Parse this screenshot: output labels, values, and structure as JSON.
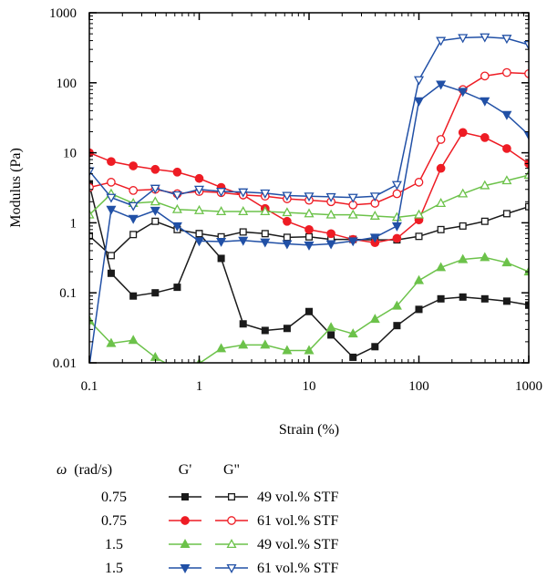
{
  "chart_data": {
    "type": "line",
    "x_scale": "log",
    "y_scale": "log",
    "xlim": [
      0.1,
      1000
    ],
    "ylim": [
      0.01,
      1000
    ],
    "xlabel": "Strain (%)",
    "ylabel": "Modulus (Pa)",
    "x_ticks": [
      {
        "value": 0.1,
        "label": "0.1"
      },
      {
        "value": 1,
        "label": "1"
      },
      {
        "value": 10,
        "label": "10"
      },
      {
        "value": 100,
        "label": "100"
      },
      {
        "value": 1000,
        "label": "1000"
      }
    ],
    "y_ticks": [
      {
        "value": 0.01,
        "label": "0.01"
      },
      {
        "value": 0.1,
        "label": "0.1"
      },
      {
        "value": 1,
        "label": "1"
      },
      {
        "value": 10,
        "label": "10"
      },
      {
        "value": 100,
        "label": "100"
      },
      {
        "value": 1000,
        "label": "1000"
      }
    ],
    "grid": false,
    "legend": {
      "position": "bottom",
      "header": {
        "omega_symbol": "ω",
        "omega_unit": "(rad/s)",
        "g_prime": "G'",
        "g_double_prime": "G\""
      },
      "rows": [
        {
          "omega": "0.75",
          "label": "49 vol.% STF",
          "color": "#1a1a1a"
        },
        {
          "omega": "0.75",
          "label": "61 vol.% STF",
          "color": "#ee1c24"
        },
        {
          "omega": "1.5",
          "label": "49 vol.% STF",
          "color": "#6cc24a"
        },
        {
          "omega": "1.5",
          "label": "61 vol.% STF",
          "color": "#2150a6"
        }
      ]
    },
    "series": [
      {
        "name": "G' 49 vol.% STF, ω 0.75",
        "color": "#1a1a1a",
        "marker": "square",
        "filled": true,
        "x": [
          0.1,
          0.158,
          0.251,
          0.398,
          0.631,
          1.0,
          1.585,
          2.512,
          3.981,
          6.31,
          10.0,
          15.85,
          25.12,
          39.81,
          63.1,
          100,
          158.5,
          251.2,
          398.1,
          631,
          1000
        ],
        "y": [
          3.5,
          0.19,
          0.09,
          0.1,
          0.12,
          0.7,
          0.31,
          0.036,
          0.029,
          0.031,
          0.054,
          0.025,
          0.012,
          0.017,
          0.034,
          0.058,
          0.082,
          0.087,
          0.082,
          0.076,
          0.067
        ]
      },
      {
        "name": "G\" 49 vol.% STF, ω 0.75",
        "color": "#1a1a1a",
        "marker": "square",
        "filled": false,
        "x": [
          0.1,
          0.158,
          0.251,
          0.398,
          0.631,
          1.0,
          1.585,
          2.512,
          3.981,
          6.31,
          10.0,
          15.85,
          25.12,
          39.81,
          63.1,
          100,
          158.5,
          251.2,
          398.1,
          631,
          1000
        ],
        "y": [
          0.65,
          0.34,
          0.68,
          1.05,
          0.8,
          0.7,
          0.63,
          0.74,
          0.7,
          0.62,
          0.63,
          0.58,
          0.58,
          0.57,
          0.57,
          0.64,
          0.8,
          0.9,
          1.05,
          1.35,
          1.7
        ]
      },
      {
        "name": "G' 61 vol.% STF, ω 0.75",
        "color": "#ee1c24",
        "marker": "circle",
        "filled": true,
        "x": [
          0.1,
          0.158,
          0.251,
          0.398,
          0.631,
          1.0,
          1.585,
          2.512,
          3.981,
          6.31,
          10.0,
          15.85,
          25.12,
          39.81,
          63.1,
          100,
          158.5,
          251.2,
          398.1,
          631,
          1000
        ],
        "y": [
          10,
          7.5,
          6.5,
          5.8,
          5.3,
          4.3,
          3.2,
          2.5,
          1.6,
          1.05,
          0.8,
          0.7,
          0.58,
          0.52,
          0.6,
          1.1,
          6,
          19.5,
          16.5,
          11.5,
          7
        ]
      },
      {
        "name": "G\" 61 vol.% STF, ω 0.75",
        "color": "#ee1c24",
        "marker": "circle",
        "filled": false,
        "x": [
          0.1,
          0.158,
          0.251,
          0.398,
          0.631,
          1.0,
          1.585,
          2.512,
          3.981,
          6.31,
          10.0,
          15.85,
          25.12,
          39.81,
          63.1,
          100,
          158.5,
          251.2,
          398.1,
          631,
          1000
        ],
        "y": [
          3.2,
          3.8,
          2.9,
          3.0,
          2.6,
          2.8,
          2.7,
          2.5,
          2.4,
          2.2,
          2.1,
          2.0,
          1.8,
          1.9,
          2.6,
          3.8,
          15.5,
          80,
          125,
          140,
          135
        ]
      },
      {
        "name": "G' 49 vol.% STF, ω 1.5",
        "color": "#6cc24a",
        "marker": "triangle-up",
        "filled": true,
        "x": [
          0.1,
          0.158,
          0.251,
          0.398,
          0.631,
          1.0,
          1.585,
          2.512,
          3.981,
          6.31,
          10.0,
          15.85,
          25.12,
          39.81,
          63.1,
          100,
          158.5,
          251.2,
          398.1,
          631,
          1000
        ],
        "y": [
          0.04,
          0.019,
          0.021,
          0.012,
          0.008,
          0.0098,
          0.016,
          0.018,
          0.018,
          0.015,
          0.015,
          0.032,
          0.026,
          0.042,
          0.065,
          0.15,
          0.23,
          0.3,
          0.32,
          0.27,
          0.2
        ]
      },
      {
        "name": "G\" 49 vol.% STF, ω 1.5",
        "color": "#6cc24a",
        "marker": "triangle-up",
        "filled": false,
        "x": [
          0.1,
          0.158,
          0.251,
          0.398,
          0.631,
          1.0,
          1.585,
          2.512,
          3.981,
          6.31,
          10.0,
          15.85,
          25.12,
          39.81,
          63.1,
          100,
          158.5,
          251.2,
          398.1,
          631,
          1000
        ],
        "y": [
          1.3,
          2.6,
          1.9,
          2.0,
          1.55,
          1.5,
          1.45,
          1.45,
          1.45,
          1.4,
          1.35,
          1.3,
          1.3,
          1.25,
          1.2,
          1.3,
          1.9,
          2.6,
          3.4,
          4.0,
          4.8
        ]
      },
      {
        "name": "G' 61 vol.% STF, ω 1.5",
        "color": "#2150a6",
        "marker": "triangle-down",
        "filled": true,
        "x": [
          0.1,
          0.158,
          0.251,
          0.398,
          0.631,
          1.0,
          1.585,
          2.512,
          3.981,
          6.31,
          10.0,
          15.85,
          25.12,
          39.81,
          63.1,
          100,
          158.5,
          251.2,
          398.1,
          631,
          1000
        ],
        "y": [
          0.009,
          1.55,
          1.15,
          1.5,
          0.9,
          0.55,
          0.54,
          0.56,
          0.53,
          0.5,
          0.48,
          0.5,
          0.55,
          0.62,
          0.9,
          55,
          95,
          75,
          55,
          35,
          18
        ]
      },
      {
        "name": "G\" 61 vol.% STF, ω 1.5",
        "color": "#2150a6",
        "marker": "triangle-down",
        "filled": false,
        "x": [
          0.1,
          0.158,
          0.251,
          0.398,
          0.631,
          1.0,
          1.585,
          2.512,
          3.981,
          6.31,
          10.0,
          15.85,
          25.12,
          39.81,
          63.1,
          100,
          158.5,
          251.2,
          398.1,
          631,
          1000
        ],
        "y": [
          5.5,
          2.3,
          1.75,
          3.1,
          2.5,
          3.0,
          2.8,
          2.75,
          2.65,
          2.45,
          2.4,
          2.35,
          2.3,
          2.4,
          3.5,
          110,
          400,
          440,
          450,
          430,
          350
        ]
      }
    ]
  }
}
